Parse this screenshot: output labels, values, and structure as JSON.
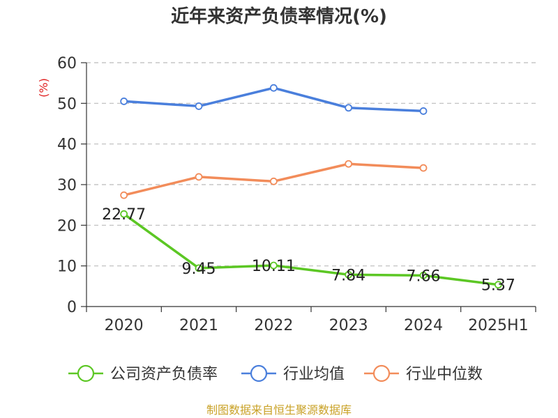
{
  "chart_data": {
    "type": "line",
    "title": "近年来资产负债率情况(%)",
    "unit_label": "(%)",
    "categories": [
      "2020",
      "2021",
      "2022",
      "2023",
      "2024",
      "2025H1"
    ],
    "yticks": [
      "0",
      "10",
      "20",
      "30",
      "40",
      "50",
      "60"
    ],
    "ylim": [
      0,
      60
    ],
    "grid": true,
    "legend_position": "bottom",
    "source": "制图数据来自恒生聚源数据库",
    "series": [
      {
        "name": "公司资产负债率",
        "color": "#5cc724",
        "values": [
          22.77,
          9.45,
          10.11,
          7.84,
          7.66,
          5.37
        ],
        "data_labels": [
          "22.77",
          "9.45",
          "10.11",
          "7.84",
          "7.66",
          "5.37"
        ]
      },
      {
        "name": "行业均值",
        "color": "#4a7fdc",
        "values": [
          50.5,
          49.3,
          53.8,
          48.9,
          48.1,
          null
        ]
      },
      {
        "name": "行业中位数",
        "color": "#f28c5a",
        "values": [
          27.4,
          31.9,
          30.8,
          35.1,
          34.1,
          null
        ]
      }
    ]
  }
}
